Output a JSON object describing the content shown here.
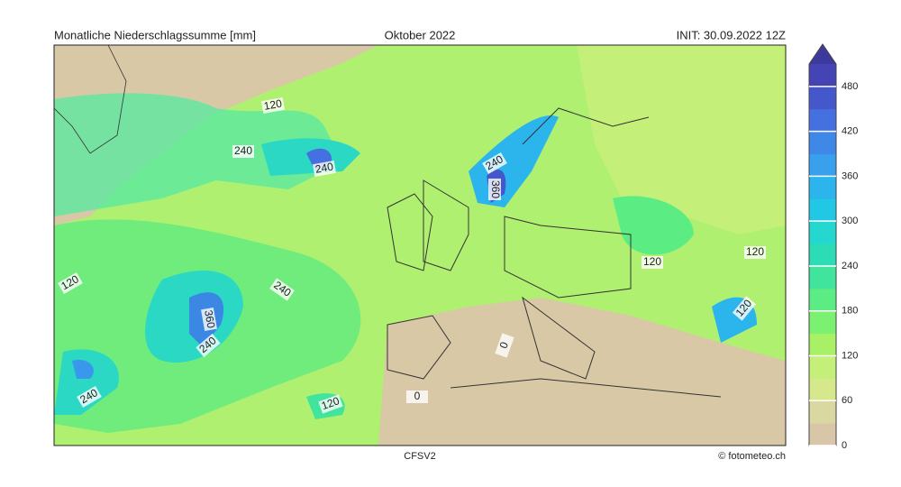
{
  "header": {
    "title": "Monatliche Niederschlagssumme [mm]",
    "month": "Oktober 2022",
    "init": "INIT: 30.09.2022 12Z"
  },
  "footer": {
    "model": "CFSV2",
    "credit": "© fotometeo.ch"
  },
  "colorbar": {
    "lim": [
      0,
      510
    ],
    "ticks": [
      0,
      60,
      120,
      180,
      240,
      300,
      360,
      420,
      480
    ],
    "bands": [
      "#d9c6a8",
      "#d8d8a0",
      "#d6e88c",
      "#c4f07a",
      "#a8f066",
      "#7cf070",
      "#5cec84",
      "#40e49c",
      "#2cdcb4",
      "#24d8d0",
      "#20c8e4",
      "#2cb4ec",
      "#38a0ec",
      "#4088e8",
      "#4470e0",
      "#4458cc",
      "#4444b4"
    ],
    "top_color": "#3c3a9c"
  },
  "contour_labels": [
    "120",
    "240",
    "240",
    "240",
    "360",
    "120",
    "240",
    "360",
    "240",
    "240",
    "120",
    "120",
    "120",
    "120",
    "0",
    "0"
  ]
}
